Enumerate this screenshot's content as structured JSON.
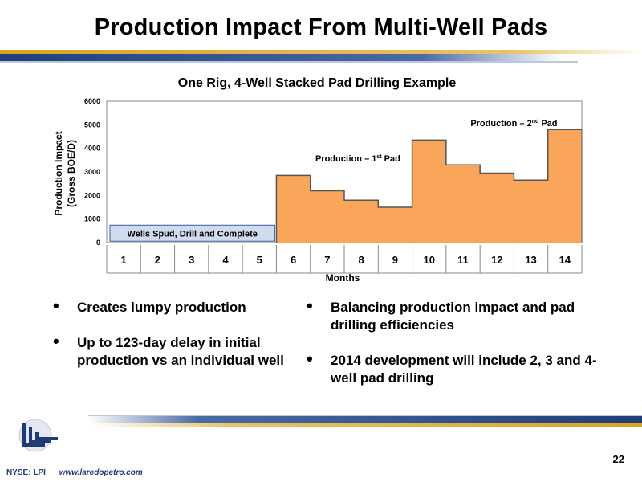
{
  "slide": {
    "title": "Production Impact From Multi-Well Pads",
    "page_number": "22",
    "footer_ticker": "NYSE: LPI",
    "footer_url": "www.laredopetro.com"
  },
  "colors": {
    "fill": "#f9a65a",
    "stroke": "#555555",
    "spud_box": "#cfdbee",
    "band_blue": "#1f3f7a",
    "band_gold": "#d9a322"
  },
  "chart_data": {
    "type": "area",
    "title": "One Rig, 4-Well Stacked Pad Drilling Example",
    "xlabel": "Months",
    "ylabel_line1": "Production Impact",
    "ylabel_line2": "(Gross BOE/D)",
    "categories": [
      "1",
      "2",
      "3",
      "4",
      "5",
      "6",
      "7",
      "8",
      "9",
      "10",
      "11",
      "12",
      "13",
      "14"
    ],
    "values": [
      0,
      0,
      0,
      0,
      0,
      2850,
      2200,
      1800,
      1500,
      4350,
      3300,
      2950,
      2650,
      4800
    ],
    "ylim": [
      0,
      6000
    ],
    "yticks": [
      "0",
      "1000",
      "2000",
      "3000",
      "4000",
      "5000",
      "6000"
    ],
    "grid": false,
    "step": true,
    "annotations": [
      {
        "text": "Wells Spud, Drill and Complete",
        "boxed": true,
        "x_start": 1,
        "x_end": 5,
        "y": 400
      },
      {
        "text_main": "Production – 1",
        "sup": "st",
        "text_tail": " Pad",
        "x": 7.9,
        "y": 3450
      },
      {
        "text_main": "Production – 2",
        "sup": "nd",
        "text_tail": " Pad",
        "x": 12.5,
        "y": 4950
      }
    ]
  },
  "bullets_left": [
    "Creates lumpy production",
    "Up to 123-day delay in initial production vs an individual well"
  ],
  "bullets_right": [
    "Balancing production impact and pad drilling efficiencies",
    "2014 development will include 2, 3 and 4-well pad drilling"
  ]
}
